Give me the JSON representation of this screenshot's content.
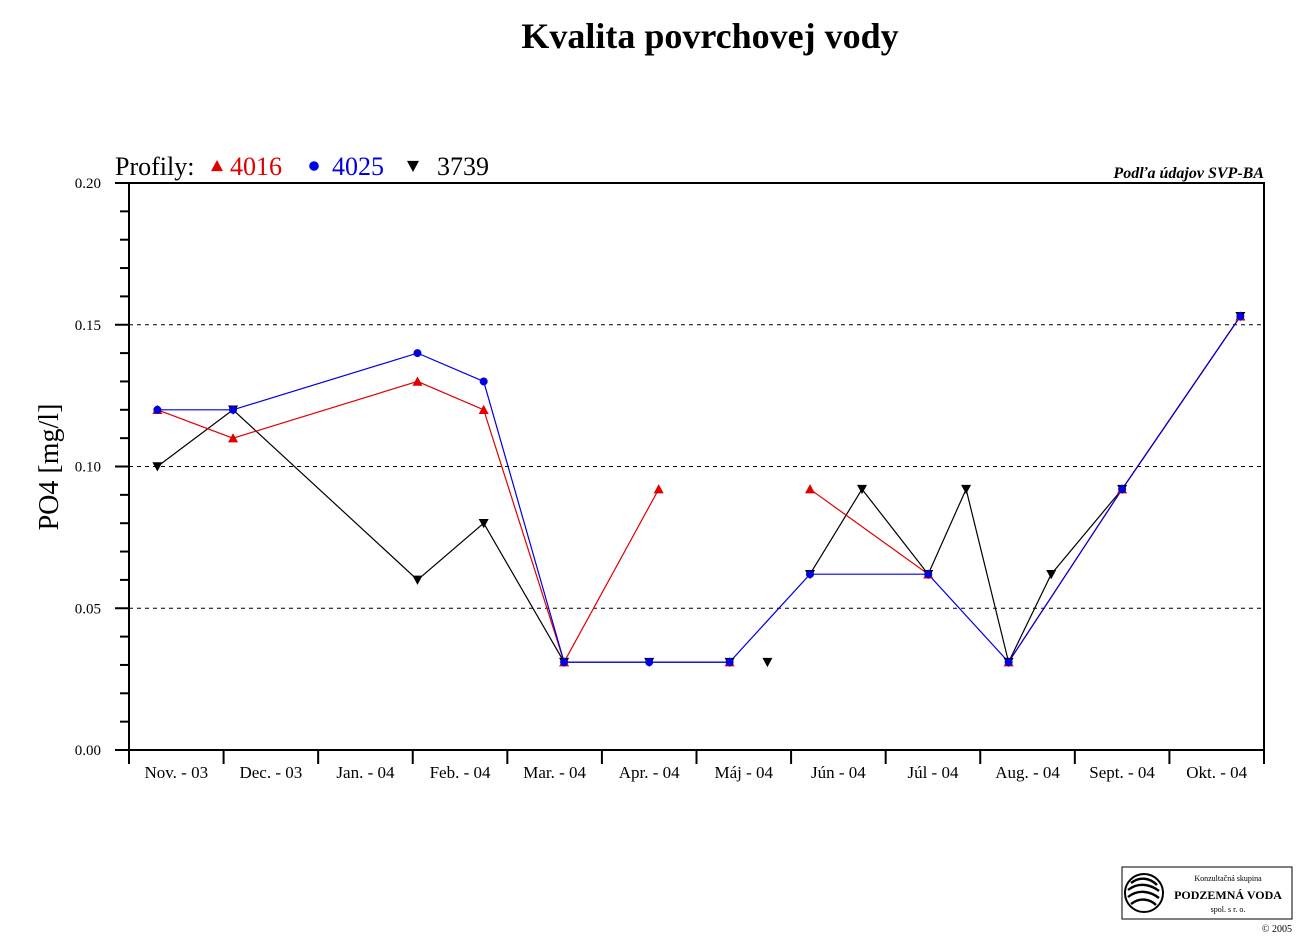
{
  "chart_data": {
    "type": "line",
    "title": "Kvalita povrchovej vody",
    "legend_prefix": "Profily:",
    "source_note": "Podľa údajov SVP-BA",
    "ylabel": "PO4 [mg/l]",
    "xlabel": "",
    "ylim": [
      0,
      0.2
    ],
    "yticks": [
      "0.00",
      "0.05",
      "0.10",
      "0.15",
      "0.20"
    ],
    "grid": "dashed horizontal at 0.05, 0.10, 0.15",
    "legend_placement": "top-left",
    "months": [
      "Nov. - 03",
      "Dec. - 03",
      "Jan. - 04",
      "Feb. - 04",
      "Mar. - 04",
      "Apr. - 04",
      "Máj - 04",
      "Jún - 04",
      "Júl - 04",
      "Aug. - 04",
      "Sept. - 04",
      "Okt. - 04"
    ],
    "series": [
      {
        "name": "4016",
        "color": "#e00000",
        "marker": "triangle-up",
        "segments": [
          [
            [
              0.3,
              0.12
            ],
            [
              1.1,
              0.11
            ],
            [
              3.05,
              0.13
            ],
            [
              3.75,
              0.12
            ],
            [
              4.6,
              0.031
            ],
            [
              5.6,
              0.092
            ]
          ],
          [
            [
              6.35,
              0.031
            ]
          ],
          [
            [
              7.2,
              0.092
            ],
            [
              8.45,
              0.062
            ]
          ],
          [
            [
              9.3,
              0.031
            ],
            [
              10.5,
              0.092
            ],
            [
              11.75,
              0.153
            ]
          ]
        ]
      },
      {
        "name": "4025",
        "color": "#0000e0",
        "marker": "circle",
        "segments": [
          [
            [
              0.3,
              0.12
            ],
            [
              1.1,
              0.12
            ],
            [
              3.05,
              0.14
            ],
            [
              3.75,
              0.13
            ],
            [
              4.6,
              0.031
            ],
            [
              5.5,
              0.031
            ],
            [
              6.35,
              0.031
            ],
            [
              7.2,
              0.062
            ],
            [
              8.45,
              0.062
            ],
            [
              9.3,
              0.031
            ],
            [
              10.5,
              0.092
            ],
            [
              11.75,
              0.153
            ]
          ]
        ]
      },
      {
        "name": "3739",
        "color": "#000000",
        "marker": "triangle-down",
        "segments": [
          [
            [
              0.3,
              0.1
            ],
            [
              1.1,
              0.12
            ],
            [
              3.05,
              0.06
            ],
            [
              3.75,
              0.08
            ],
            [
              4.6,
              0.031
            ],
            [
              5.5,
              0.031
            ],
            [
              6.35,
              0.031
            ]
          ],
          [
            [
              6.75,
              0.031
            ]
          ],
          [
            [
              7.2,
              0.062
            ],
            [
              7.75,
              0.092
            ],
            [
              8.45,
              0.062
            ],
            [
              8.85,
              0.092
            ],
            [
              9.3,
              0.031
            ],
            [
              9.75,
              0.062
            ],
            [
              10.5,
              0.092
            ],
            [
              11.75,
              0.153
            ]
          ]
        ]
      }
    ]
  },
  "logo": {
    "line1": "Konzultačná skupina",
    "name": "PODZEMNÁ VODA",
    "line3": "spol. s r. o.",
    "copyright": "© 2005"
  }
}
